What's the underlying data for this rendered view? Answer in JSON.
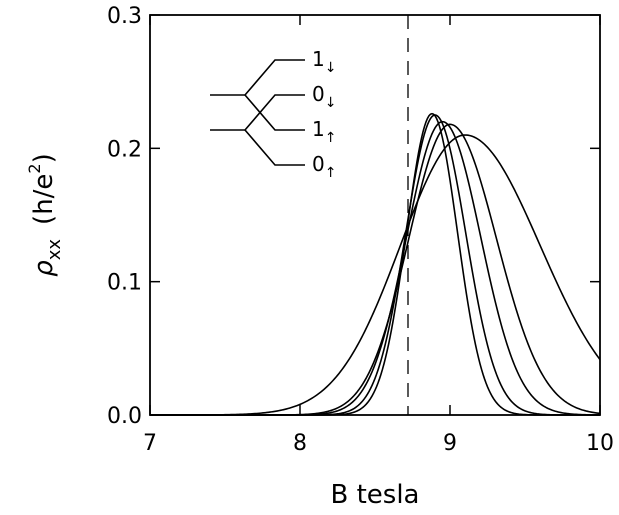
{
  "chart_data": {
    "type": "line",
    "title": "",
    "xlabel": "B tesla",
    "ylabel": {
      "symbol": "ρ",
      "subscript": "xx",
      "unit_open": "(h/e",
      "unit_sup": "2",
      "unit_close": ")"
    },
    "xlim": [
      7,
      10
    ],
    "ylim": [
      0,
      0.3
    ],
    "x_ticks": [
      "7",
      "8",
      "9",
      "10"
    ],
    "y_ticks": [
      "0.0",
      "0.1",
      "0.2",
      "0.3"
    ],
    "grid": false,
    "reference_line": {
      "x": 8.72,
      "style": "dashed"
    },
    "crossing_point": {
      "x": 8.72,
      "y": 0.16
    },
    "series": [
      {
        "peak_x": 8.88,
        "peak_y": 0.226,
        "sigma_left": 0.17,
        "sigma_right": 0.17
      },
      {
        "peak_x": 8.9,
        "peak_y": 0.225,
        "sigma_left": 0.195,
        "sigma_right": 0.205
      },
      {
        "peak_x": 8.95,
        "peak_y": 0.22,
        "sigma_left": 0.24,
        "sigma_right": 0.255
      },
      {
        "peak_x": 9.0,
        "peak_y": 0.218,
        "sigma_left": 0.275,
        "sigma_right": 0.31
      },
      {
        "peak_x": 9.1,
        "peak_y": 0.21,
        "sigma_left": 0.43,
        "sigma_right": 0.5
      }
    ],
    "inset": {
      "labels": [
        {
          "num": "1",
          "arrow": "↓"
        },
        {
          "num": "0",
          "arrow": "↓"
        },
        {
          "num": "1",
          "arrow": "↑"
        },
        {
          "num": "0",
          "arrow": "↑"
        }
      ]
    }
  }
}
